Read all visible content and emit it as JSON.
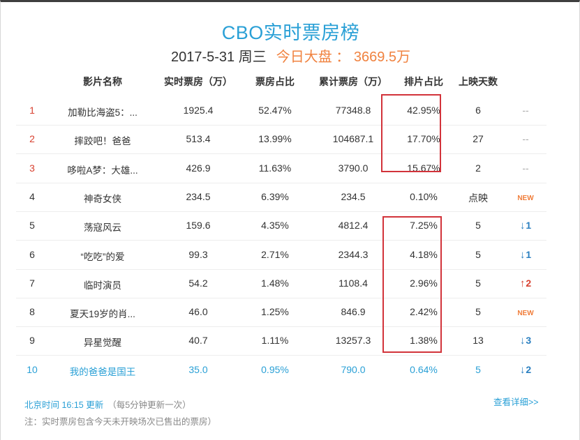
{
  "title": "CBO实时票房榜",
  "subtitle": {
    "date": "2017-5-31 周三",
    "market": "今日大盘 ： 3669.5万"
  },
  "columns": [
    "影片名称",
    "实时票房（万）",
    "票房占比",
    "累计票房（万）",
    "排片占比",
    "上映天数"
  ],
  "rows": [
    {
      "rank": "1",
      "name": "加勒比海盗5：...",
      "realtime": "1925.4",
      "share": "52.47%",
      "total": "77348.8",
      "schedule": "42.95%",
      "days": "6",
      "trend": "--",
      "trend_type": "none"
    },
    {
      "rank": "2",
      "name": "摔跤吧！爸爸",
      "realtime": "513.4",
      "share": "13.99%",
      "total": "104687.1",
      "schedule": "17.70%",
      "days": "27",
      "trend": "--",
      "trend_type": "none"
    },
    {
      "rank": "3",
      "name": "哆啦A梦：大雄...",
      "realtime": "426.9",
      "share": "11.63%",
      "total": "3790.0",
      "schedule": "15.67%",
      "days": "2",
      "trend": "--",
      "trend_type": "none"
    },
    {
      "rank": "4",
      "name": "神奇女侠",
      "realtime": "234.5",
      "share": "6.39%",
      "total": "234.5",
      "schedule": "0.10%",
      "days": "点映",
      "trend": "NEW",
      "trend_type": "new"
    },
    {
      "rank": "5",
      "name": "荡寇风云",
      "realtime": "159.6",
      "share": "4.35%",
      "total": "4812.4",
      "schedule": "7.25%",
      "days": "5",
      "trend": "1",
      "trend_type": "down"
    },
    {
      "rank": "6",
      "name": "“吃吃”的爱",
      "realtime": "99.3",
      "share": "2.71%",
      "total": "2344.3",
      "schedule": "4.18%",
      "days": "5",
      "trend": "1",
      "trend_type": "down"
    },
    {
      "rank": "7",
      "name": "临时演员",
      "realtime": "54.2",
      "share": "1.48%",
      "total": "1108.4",
      "schedule": "2.96%",
      "days": "5",
      "trend": "2",
      "trend_type": "up"
    },
    {
      "rank": "8",
      "name": "夏天19岁的肖...",
      "realtime": "46.0",
      "share": "1.25%",
      "total": "846.9",
      "schedule": "2.42%",
      "days": "5",
      "trend": "NEW",
      "trend_type": "new"
    },
    {
      "rank": "9",
      "name": "异星觉醒",
      "realtime": "40.7",
      "share": "1.11%",
      "total": "13257.3",
      "schedule": "1.38%",
      "days": "13",
      "trend": "3",
      "trend_type": "down"
    },
    {
      "rank": "10",
      "name": "我的爸爸是国王",
      "realtime": "35.0",
      "share": "0.95%",
      "total": "790.0",
      "schedule": "0.64%",
      "days": "5",
      "trend": "2",
      "trend_type": "down"
    }
  ],
  "footer": {
    "update": "北京时间 16:15 更新",
    "update_note": "（每5分钟更新一次）",
    "note": "注：实时票房包含今天未开映场次已售出的票房）",
    "more_link": "查看详细>>"
  },
  "colors": {
    "accent": "#2aa0d6",
    "market": "#f0823f",
    "highlight_box": "#d2333a",
    "rank_top": "#d8402f",
    "trend_down": "#2a7fc0",
    "trend_up": "#d8402f",
    "trend_new": "#f07d3a"
  }
}
